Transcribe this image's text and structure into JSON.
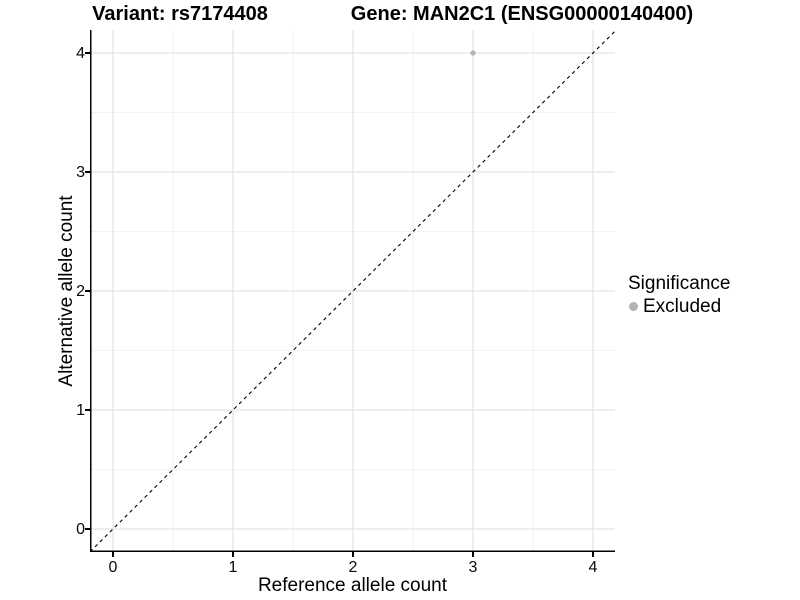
{
  "chart_data": {
    "type": "scatter",
    "titles": {
      "left": "Variant: rs7174408",
      "right": "Gene: MAN2C1 (ENSG00000140400)"
    },
    "xlabel": "Reference allele count",
    "ylabel": "Alternative allele count",
    "x_ticks": [
      0,
      1,
      2,
      3,
      4
    ],
    "y_ticks": [
      0,
      1,
      2,
      3,
      4
    ],
    "xlim": [
      -0.2,
      4.2
    ],
    "ylim": [
      -0.2,
      4.2
    ],
    "grid": "major and minor gridlines on white panel, black left and bottom axis lines",
    "legend_position": "right",
    "legend": {
      "title": "Significance",
      "items": [
        {
          "label": "Excluded",
          "color": "#b3b3b3"
        }
      ]
    },
    "series": [
      {
        "name": "Excluded",
        "color": "#b3b3b3",
        "points": [
          [
            3,
            4
          ]
        ]
      }
    ],
    "reference_line": {
      "type": "identity_y_equals_x",
      "style": "dashed",
      "color": "#000000"
    },
    "colors": {
      "background": "#ffffff",
      "grid_major": "#e3e3e3",
      "grid_minor": "#efefef",
      "axis": "#000000",
      "text": "#000000"
    }
  }
}
